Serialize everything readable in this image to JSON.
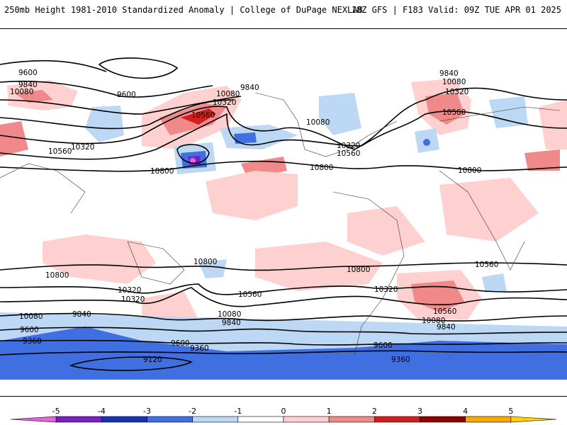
{
  "header": {
    "title": "250mb Height 1981-2010 Standardized Anomaly | College of DuPage NEXLAB",
    "run_info": "18Z GFS | F183 Valid: 09Z TUE APR 01 2025"
  },
  "map": {
    "contour_labels": [
      "9600",
      "9840",
      "10080",
      "9600",
      "9840",
      "10080",
      "10320",
      "10560",
      "10320",
      "10560",
      "10800",
      "10080",
      "10320",
      "10560",
      "10800",
      "9840",
      "10080",
      "10320",
      "10560",
      "10800",
      "10800",
      "10800",
      "10800",
      "10560",
      "10320",
      "10560",
      "10320",
      "10080",
      "9840",
      "9600",
      "10080",
      "9840",
      "9600",
      "9360",
      "9360",
      "9120",
      "9600",
      "9360",
      "10320",
      "10560",
      "10080",
      "9840"
    ]
  },
  "colorbar": {
    "ticks": [
      "-5",
      "-4",
      "-3",
      "-2",
      "-1",
      "0",
      "1",
      "2",
      "3",
      "4",
      "5"
    ],
    "colors": [
      "#e066e0",
      "#7a1fc2",
      "#1a2fb3",
      "#3f6fe0",
      "#bcd8f5",
      "#ffffff",
      "#ffd0d0",
      "#f08a8a",
      "#d41e1e",
      "#8f0000",
      "#f7a900",
      "#ffd000"
    ]
  }
}
